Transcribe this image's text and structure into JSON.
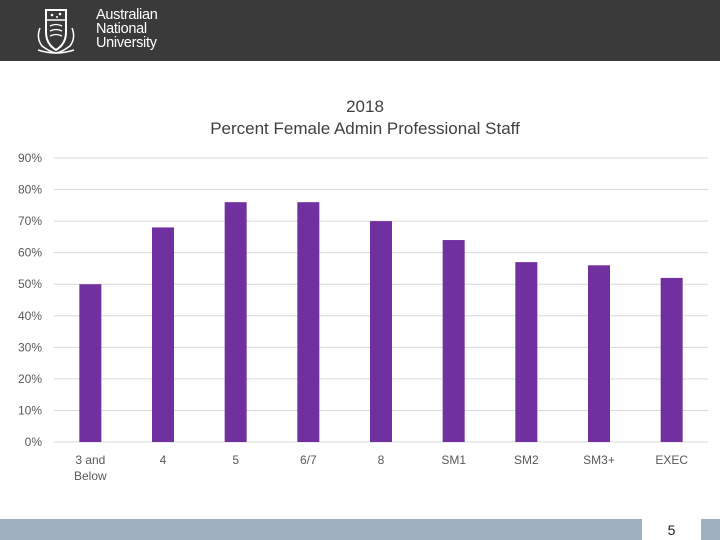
{
  "header": {
    "logo_lines": [
      "Australian",
      "National",
      "University"
    ]
  },
  "chart_data": {
    "type": "bar",
    "title_lines": [
      "2018",
      "Percent Female Admin Professional Staff"
    ],
    "categories": [
      "3 and Below",
      "4",
      "5",
      "6/7",
      "8",
      "SM1",
      "SM2",
      "SM3+",
      "EXEC"
    ],
    "category_label_lines": [
      [
        "3 and",
        "Below"
      ],
      [
        "4"
      ],
      [
        "5"
      ],
      [
        "6/7"
      ],
      [
        "8"
      ],
      [
        "SM1"
      ],
      [
        "SM2"
      ],
      [
        "SM3+"
      ],
      [
        "EXEC"
      ]
    ],
    "values": [
      50,
      68,
      76,
      76,
      70,
      64,
      57,
      56,
      52
    ],
    "ylim": [
      0,
      90
    ],
    "yticks": [
      0,
      10,
      20,
      30,
      40,
      50,
      60,
      70,
      80,
      90
    ],
    "ytick_labels": [
      "0%",
      "10%",
      "20%",
      "30%",
      "40%",
      "50%",
      "60%",
      "70%",
      "80%",
      "90%"
    ],
    "xlabel": "",
    "ylabel": "",
    "grid": true,
    "legend": "none",
    "bar_color": "#7030a0",
    "grid_color": "#d9d9d9",
    "text_color": "#595959"
  },
  "footer": {
    "page_number": "5"
  }
}
